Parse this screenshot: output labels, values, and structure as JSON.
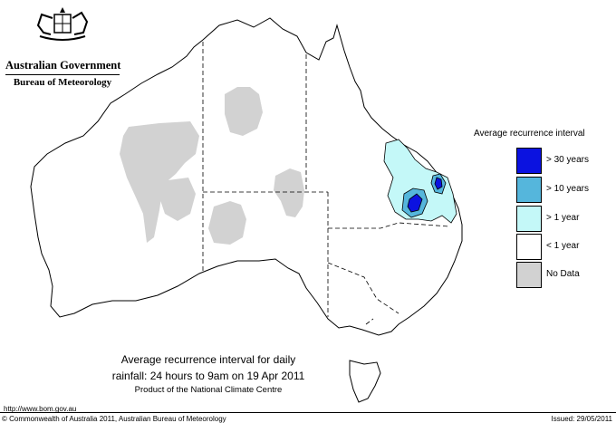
{
  "header": {
    "government": "Australian Government",
    "bureau": "Bureau of Meteorology"
  },
  "legend": {
    "title": "Average recurrence interval",
    "items": [
      {
        "label": "> 30 years",
        "color": "#0b12e0"
      },
      {
        "label": "> 10 years",
        "color": "#55b6dc"
      },
      {
        "label": "> 1 year",
        "color": "#c4f8f8"
      },
      {
        "label": "< 1 year",
        "color": "#ffffff"
      },
      {
        "label": "No Data",
        "color": "#d2d2d2"
      }
    ]
  },
  "caption": {
    "line1": "Average recurrence interval for daily",
    "line2": "rainfall: 24 hours to 9am on 19 Apr 2011",
    "line3": "Product of the National Climate Centre"
  },
  "footer": {
    "url": "http://www.bom.gov.au",
    "copyright": "© Commonwealth of Australia 2011, Australian Bureau of Meteorology",
    "issued": "Issued: 29/05/2011"
  }
}
